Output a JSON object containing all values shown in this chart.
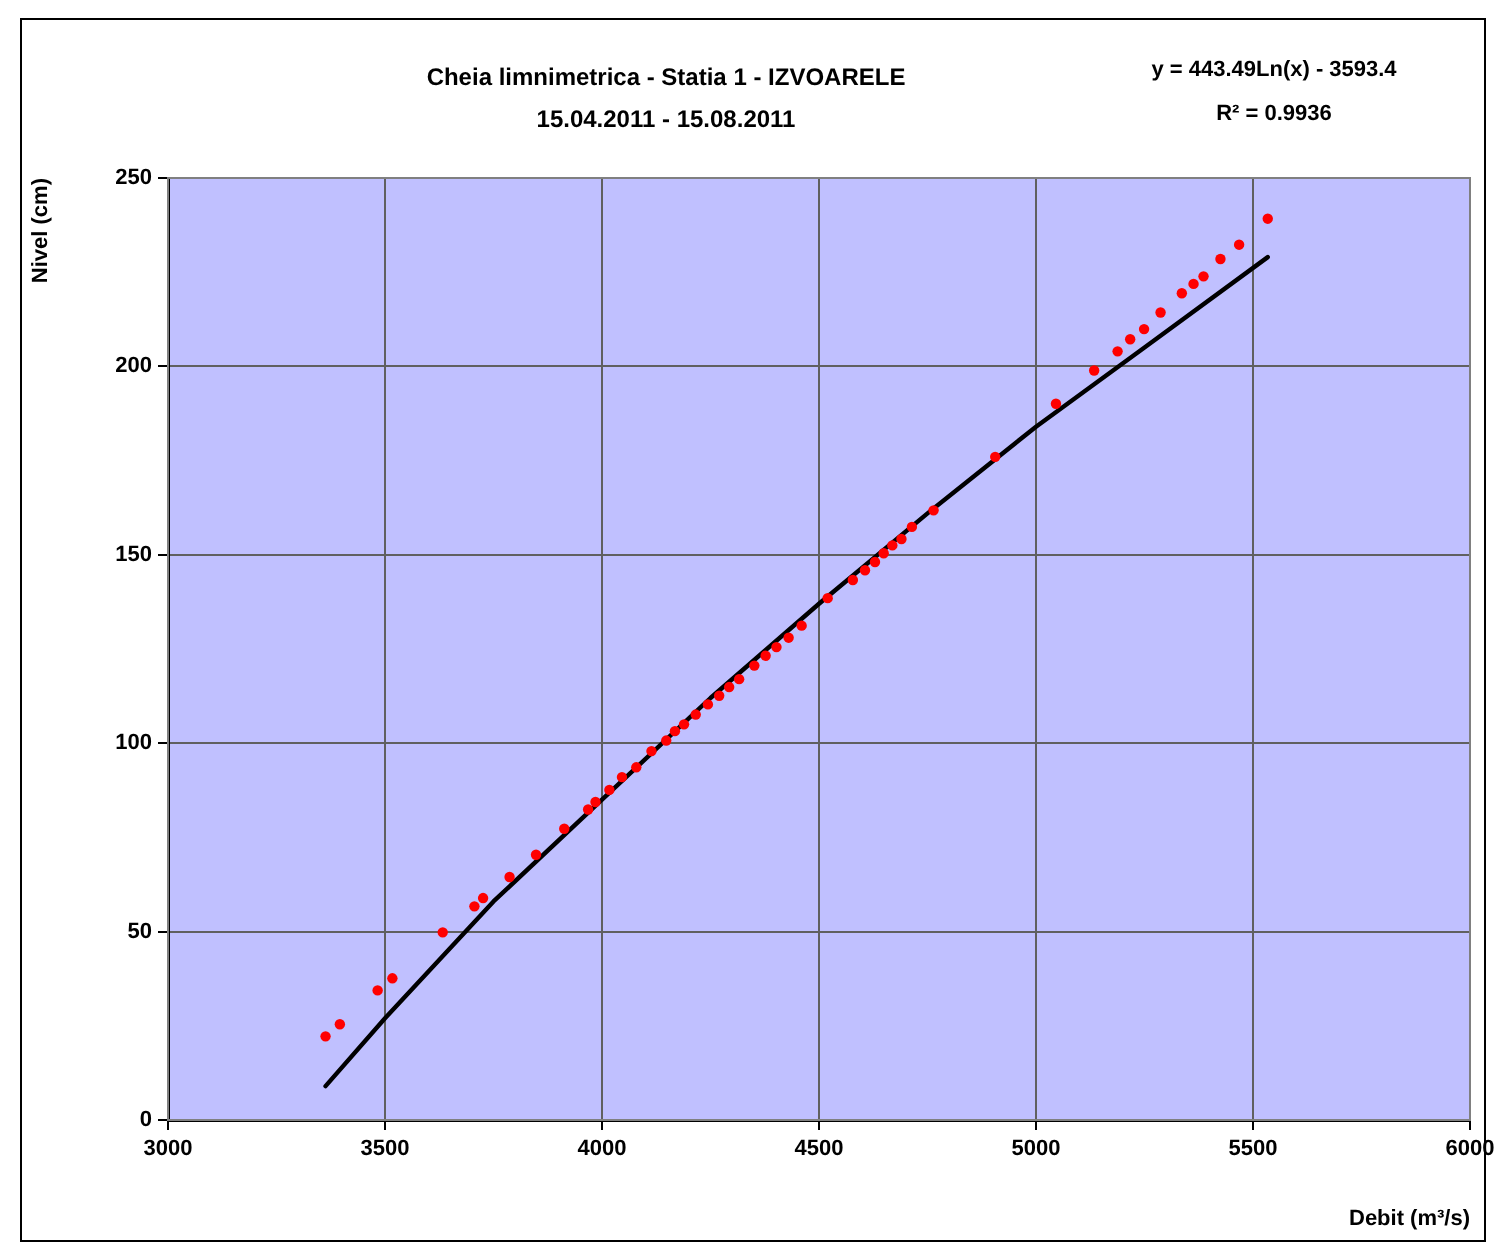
{
  "chart_data": {
    "type": "scatter",
    "title": "Cheia limnimetrica - Statia 1 - IZVOARELE",
    "subtitle": "15.04.2011 - 15.08.2011",
    "xlabel": "Debit (m³/s)",
    "ylabel": "Nivel (cm)",
    "annotations": [
      "y = 443.49Ln(x) - 3593.4",
      "R² = 0.9936"
    ],
    "xlim": [
      3000,
      6000
    ],
    "xticks": [
      3000,
      3500,
      4000,
      4500,
      5000,
      5500,
      6000
    ],
    "ylim": [
      0,
      250
    ],
    "yticks": [
      0,
      50,
      100,
      150,
      200,
      250
    ],
    "grid": true,
    "series": [
      {
        "type": "scatter",
        "marker": "circle",
        "color": "#ff0000",
        "x": [
          3363,
          3396,
          3483,
          3517,
          3633,
          3706,
          3726,
          3787,
          3848,
          3913,
          3968,
          3985,
          4017,
          4046,
          4079,
          4114,
          4148,
          4168,
          4189,
          4216,
          4244,
          4270,
          4293,
          4316,
          4351,
          4377,
          4402,
          4430,
          4460,
          4520,
          4578,
          4606,
          4629,
          4649,
          4669,
          4690,
          4714,
          4764,
          4906,
          5046,
          5134,
          5188,
          5217,
          5249,
          5287,
          5336,
          5363,
          5386,
          5425,
          5468,
          5534
        ],
        "values": [
          22.2,
          25.4,
          34.4,
          37.6,
          49.8,
          56.7,
          58.9,
          64.5,
          70.4,
          77.3,
          82.4,
          84.4,
          87.6,
          91.0,
          93.6,
          97.9,
          100.7,
          103.2,
          105.0,
          107.6,
          110.3,
          112.6,
          114.9,
          117.0,
          120.6,
          123.2,
          125.5,
          128.0,
          131.2,
          138.5,
          143.3,
          145.9,
          148.1,
          150.4,
          152.5,
          154.2,
          157.4,
          161.8,
          176.0,
          190.1,
          198.9,
          204.0,
          207.2,
          209.9,
          214.3,
          219.4,
          221.9,
          223.9,
          228.5,
          232.3,
          239.2
        ]
      },
      {
        "type": "line",
        "marker": "none",
        "color": "#000000",
        "line_style": "solid",
        "x": [
          3363,
          3500,
          3750,
          4000,
          4250,
          4500,
          4750,
          5000,
          5250,
          5534
        ],
        "values": [
          9,
          27,
          58,
          85,
          112,
          137,
          161,
          184,
          205,
          229
        ]
      }
    ]
  }
}
